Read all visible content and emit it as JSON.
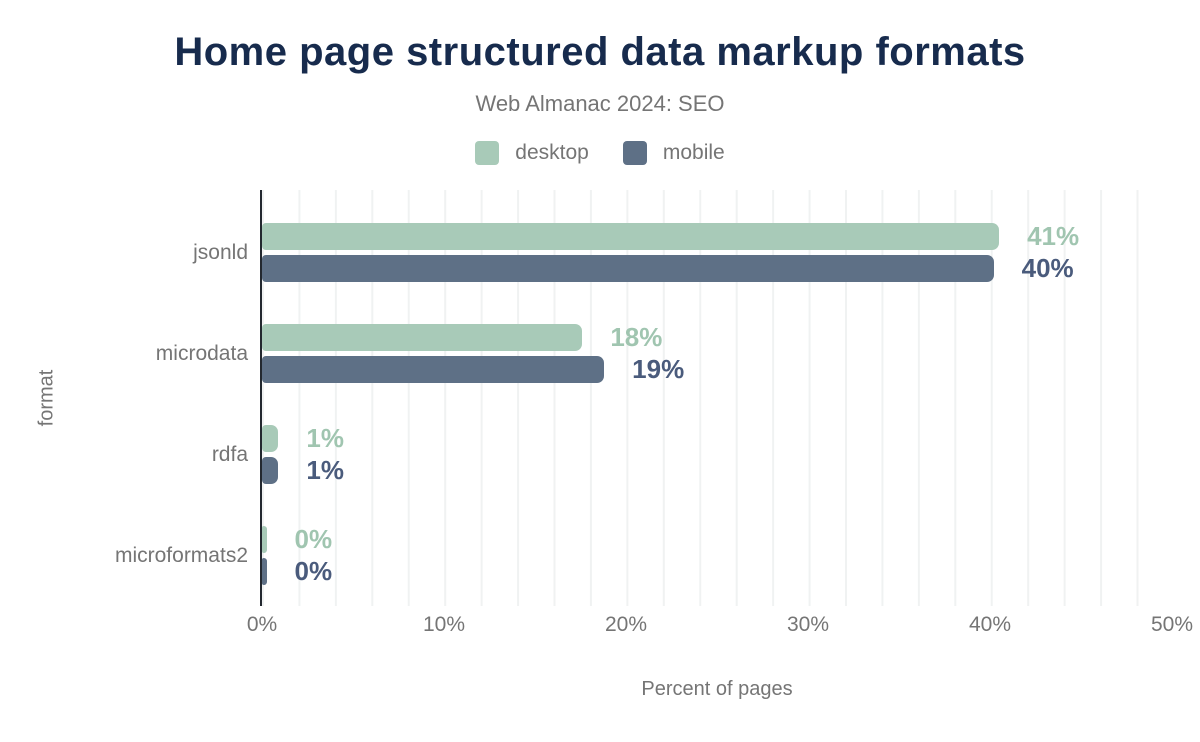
{
  "title": "Home page structured data markup formats",
  "subtitle": "Web Almanac 2024: SEO",
  "chart_data": {
    "type": "bar",
    "orientation": "horizontal",
    "title": "Home page structured data markup formats",
    "subtitle": "Web Almanac 2024: SEO",
    "xlabel": "Percent of pages",
    "ylabel": "format",
    "xlim": [
      0,
      50
    ],
    "x_ticks": [
      "0%",
      "10%",
      "20%",
      "30%",
      "40%",
      "50%"
    ],
    "grid": {
      "minor_step_pct": 2,
      "color": "#f0f2f2",
      "vertical": true
    },
    "legend_position": "top",
    "categories": [
      "jsonld",
      "microdata",
      "rdfa",
      "microformats2"
    ],
    "series": [
      {
        "name": "desktop",
        "color": "#a8cab8",
        "label_color": "#a0c5b0",
        "values_pct": [
          41,
          18,
          1,
          0
        ],
        "value_labels": [
          "41%",
          "18%",
          "1%",
          "0%"
        ],
        "bar_length_pct": [
          40.5,
          17.6,
          0.9,
          0.25
        ]
      },
      {
        "name": "mobile",
        "color": "#5e7086",
        "label_color": "#4a5b7c",
        "values_pct": [
          40,
          19,
          1,
          0
        ],
        "value_labels": [
          "40%",
          "19%",
          "1%",
          "0%"
        ],
        "bar_length_pct": [
          40.2,
          18.8,
          0.9,
          0.25
        ]
      }
    ],
    "colors": {
      "title": "#172b4d",
      "text": "#757575",
      "axis_line": "#23282f",
      "background": "#ffffff"
    }
  }
}
